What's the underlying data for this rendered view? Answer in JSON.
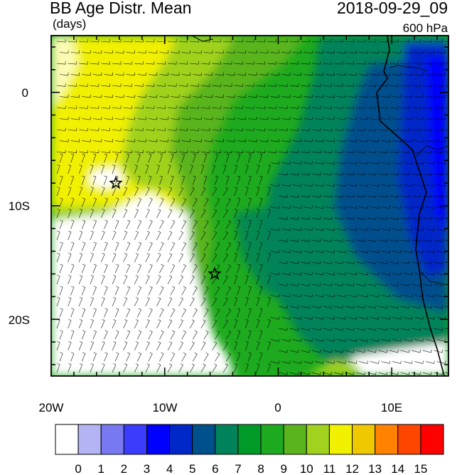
{
  "title": {
    "main": "BB Age Distr. Mean",
    "units": "(days)",
    "datetime": "2018-09-29_09",
    "level": "600 hPa"
  },
  "axes": {
    "x_ticks": [
      {
        "lon": -20,
        "label": "20W"
      },
      {
        "lon": -10,
        "label": "10W"
      },
      {
        "lon": 0,
        "label": "0"
      },
      {
        "lon": 10,
        "label": "10E"
      }
    ],
    "y_ticks": [
      {
        "lat": 0,
        "label": "0"
      },
      {
        "lat": -10,
        "label": "10S"
      },
      {
        "lat": -20,
        "label": "20S"
      }
    ],
    "lon_range": [
      -20,
      15
    ],
    "lat_range": [
      -25,
      5
    ]
  },
  "colorbar": {
    "labels": [
      "0",
      "1",
      "2",
      "3",
      "4",
      "5",
      "6",
      "7",
      "8",
      "9",
      "10",
      "11",
      "12",
      "13",
      "14",
      "15"
    ],
    "colors": [
      "#ffffff",
      "#b4b4f5",
      "#7878f0",
      "#3c3cff",
      "#0000ff",
      "#0028c8",
      "#00508c",
      "#00825a",
      "#009a28",
      "#1eaa1e",
      "#5ab41e",
      "#a0d21e",
      "#f0f000",
      "#f0c800",
      "#ff8200",
      "#ff4600",
      "#ff0000"
    ]
  },
  "markers": [
    {
      "name": "star-1",
      "lon": -14.3,
      "lat": -8
    },
    {
      "name": "star-2",
      "lon": -5.6,
      "lat": -16
    }
  ]
}
